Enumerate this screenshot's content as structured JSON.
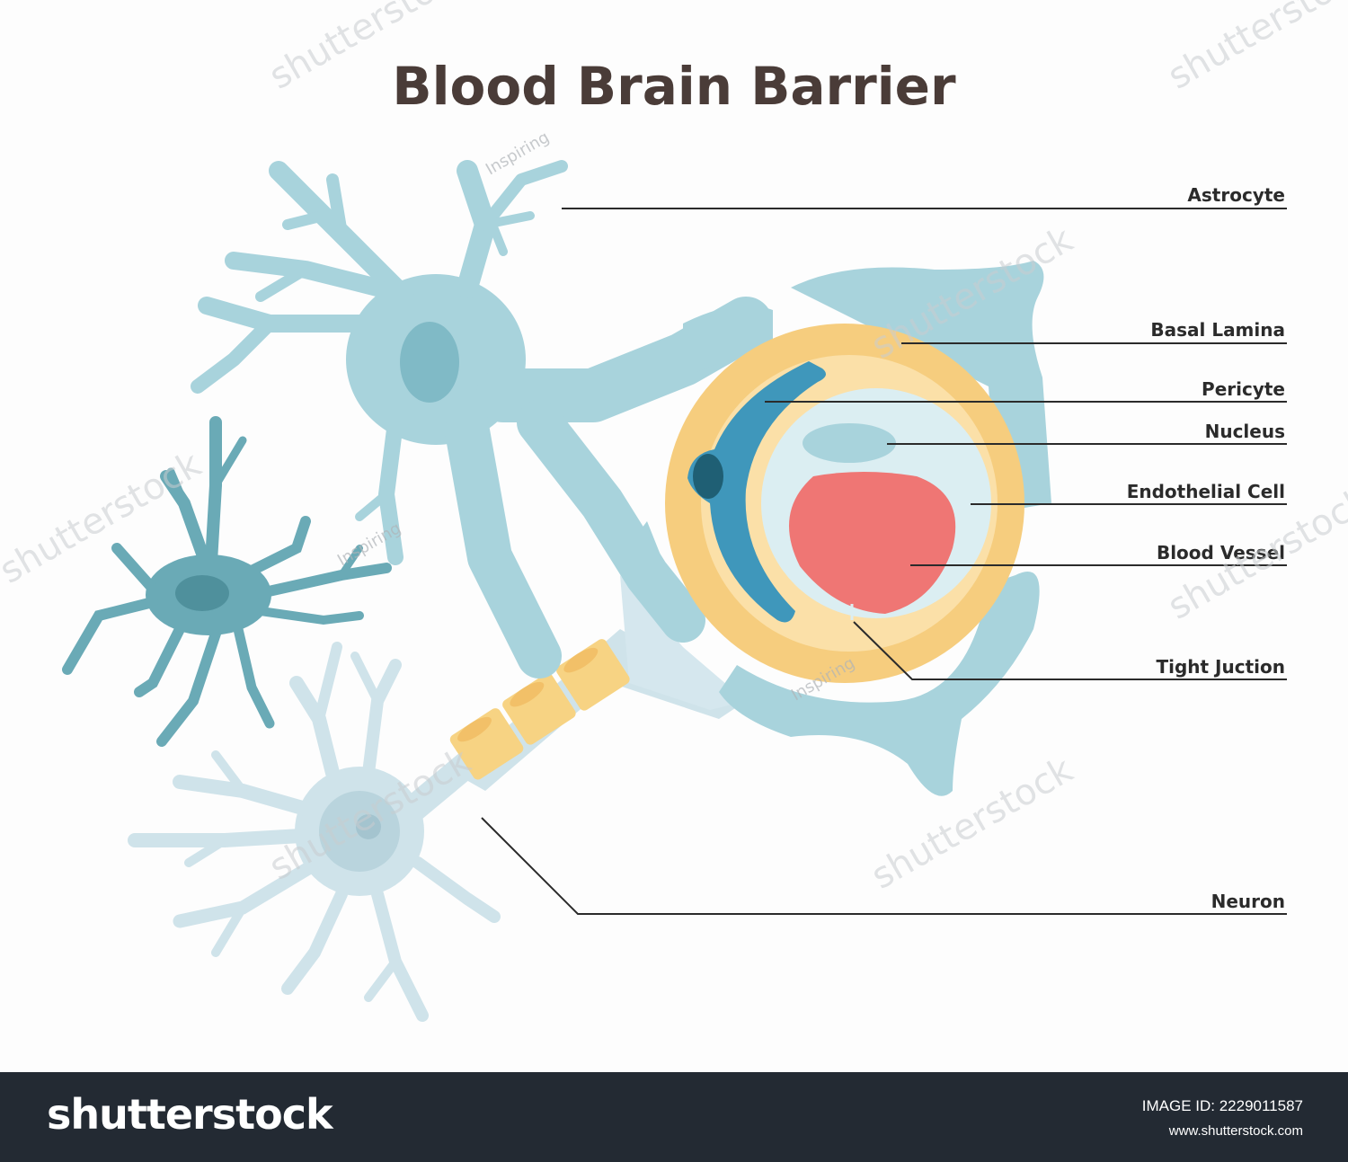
{
  "title": "Blood Brain Barrier",
  "labels": {
    "astrocyte": "Astrocyte",
    "basal_lamina": "Basal Lamina",
    "pericyte": "Pericyte",
    "nucleus": "Nucleus",
    "endothelial_cell": "Endothelial Cell",
    "blood_vessel": "Blood Vessel",
    "tight_junction": "Tight Juction",
    "neuron": "Neuron"
  },
  "watermark": {
    "text": "shutterstock",
    "author": "Inspiring"
  },
  "footer": {
    "brand": "shutterstock",
    "image_id": "IMAGE ID: 2229011587",
    "site": "www.shutterstock.com"
  },
  "colors": {
    "astrocyte": "#a8d3dc",
    "astrocyte_nucleus": "#80bac6",
    "microglia": "#6aaab6",
    "neuron": "#cfe3ea",
    "basal_lamina": "#f6cd7e",
    "basal_lamina_light": "#fbe0a8",
    "pericyte": "#3f97bb",
    "pericyte_nucleus": "#1f5f74",
    "lumen": "#dbeef2",
    "blood": "#ef7674",
    "myelin": "#f7d383",
    "title": "#4a3c38",
    "footer_bg": "#232a33"
  }
}
